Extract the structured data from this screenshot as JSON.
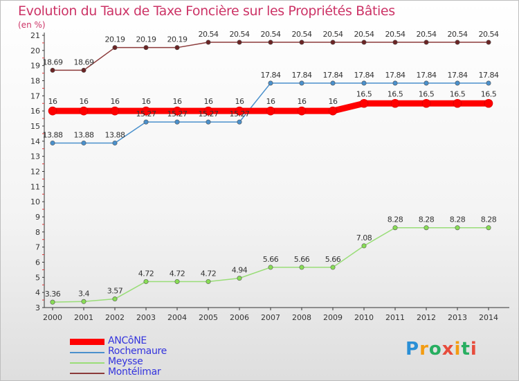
{
  "header": {
    "title": "Evolution du Taux de Taxe Foncière sur les Propriétés Bâties",
    "subtitle": "(en %)"
  },
  "logo": {
    "text": "Proxiti"
  },
  "chart_data": {
    "type": "line",
    "title": "Evolution du Taux de Taxe Foncière sur les Propriétés Bâties",
    "subtitle": "(en %)",
    "x": [
      2000,
      2001,
      2002,
      2003,
      2004,
      2005,
      2006,
      2007,
      2008,
      2009,
      2010,
      2011,
      2012,
      2013,
      2014
    ],
    "ylim": [
      3,
      21
    ],
    "yticks": [
      3,
      4,
      5,
      6,
      7,
      8,
      9,
      10,
      11,
      12,
      13,
      14,
      15,
      16,
      17,
      18,
      19,
      20,
      21
    ],
    "grid": false,
    "legend_position": "bottom-left",
    "series": [
      {
        "name": "ANCôNE",
        "color": "#ff0000",
        "values": [
          16,
          16,
          16,
          16,
          16,
          16,
          16,
          16,
          16,
          16,
          16.5,
          16.5,
          16.5,
          16.5,
          16.5
        ],
        "labels": [
          "16",
          "16",
          "16",
          "16",
          "16",
          "16",
          "16",
          "16",
          "16",
          "16",
          "16.5",
          "16.5",
          "16.5",
          "16.5",
          "16.5"
        ]
      },
      {
        "name": "Rochemaure",
        "color": "#4a90cc",
        "values": [
          13.88,
          13.88,
          13.88,
          15.27,
          15.27,
          15.27,
          15.27,
          17.84,
          17.84,
          17.84,
          17.84,
          17.84,
          17.84,
          17.84,
          17.84
        ],
        "labels": [
          "13.88",
          "13.88",
          "13.88",
          "15.27",
          "15.27",
          "15.27",
          "15.27",
          "17.84",
          "17.84",
          "17.84",
          "17.84",
          "17.84",
          "17.84",
          "17.84",
          "17.84"
        ]
      },
      {
        "name": "Meysse",
        "color": "#99dd77",
        "values": [
          3.36,
          3.4,
          3.57,
          4.72,
          4.72,
          4.72,
          4.94,
          5.66,
          5.66,
          5.66,
          7.08,
          8.28,
          8.28,
          8.28,
          8.28
        ],
        "labels": [
          "3.36",
          "3.4",
          "3.57",
          "4.72",
          "4.72",
          "4.72",
          "4.94",
          "5.66",
          "5.66",
          "5.66",
          "7.08",
          "8.28",
          "8.28",
          "8.28",
          "8.28"
        ]
      },
      {
        "name": "Montélimar",
        "color": "#8b3a3a",
        "values": [
          18.69,
          18.69,
          20.19,
          20.19,
          20.19,
          20.54,
          20.54,
          20.54,
          20.54,
          20.54,
          20.54,
          20.54,
          20.54,
          20.54,
          20.54
        ],
        "labels": [
          "18.69",
          "18.69",
          "20.19",
          "20.19",
          "20.19",
          "20.54",
          "20.54",
          "20.54",
          "20.54",
          "20.54",
          "20.54",
          "20.54",
          "20.54",
          "20.54",
          "20.54"
        ]
      }
    ]
  }
}
